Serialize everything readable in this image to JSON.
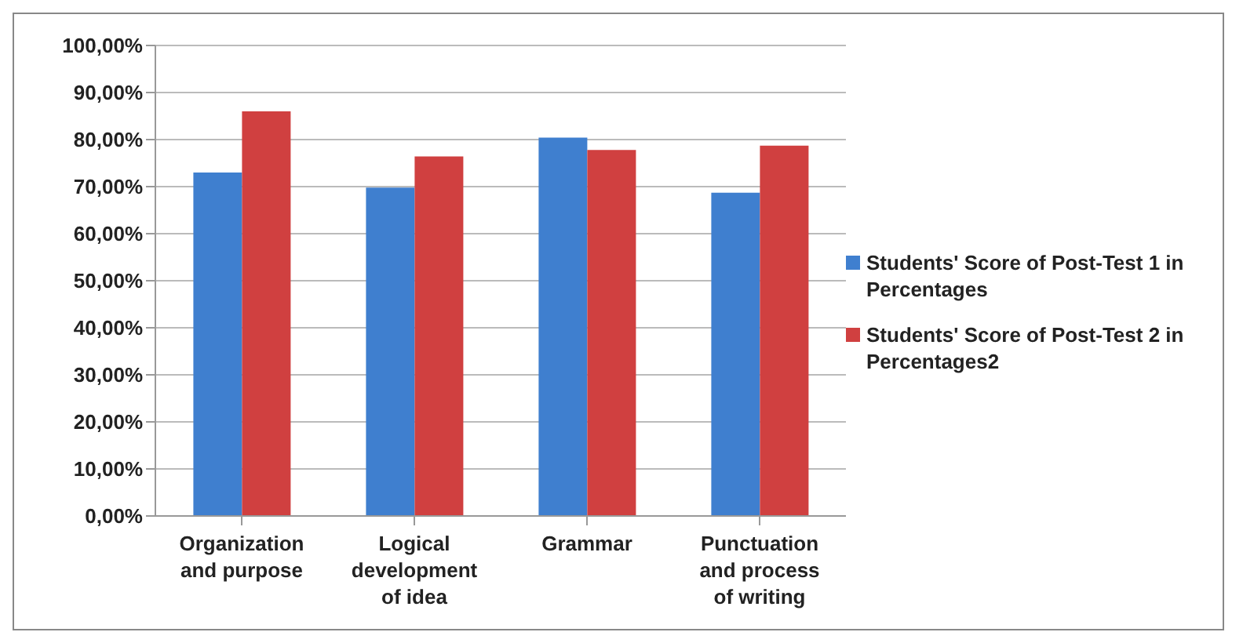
{
  "chart_data": {
    "type": "bar",
    "categories": [
      "Organization and purpose",
      "Logical development of idea",
      "Grammar",
      "Punctuation and process of writing"
    ],
    "series": [
      {
        "name": "Students' Score of Post-Test 1 in Percentages",
        "color": "#3f7fcf",
        "values": [
          73.0,
          69.8,
          80.4,
          68.7
        ]
      },
      {
        "name": "Students' Score of Post-Test 2 in Percentages2",
        "color": "#d04040",
        "values": [
          86.0,
          76.4,
          77.8,
          78.7
        ]
      }
    ],
    "ylim": [
      0,
      100
    ],
    "yticks": [
      {
        "value": 0,
        "label": "0,00%"
      },
      {
        "value": 10,
        "label": "10,00%"
      },
      {
        "value": 20,
        "label": "20,00%"
      },
      {
        "value": 30,
        "label": "30,00%"
      },
      {
        "value": 40,
        "label": "40,00%"
      },
      {
        "value": 50,
        "label": "50,00%"
      },
      {
        "value": 60,
        "label": "60,00%"
      },
      {
        "value": 70,
        "label": "70,00%"
      },
      {
        "value": 80,
        "label": "80,00%"
      },
      {
        "value": 90,
        "label": "90,00%"
      },
      {
        "value": 100,
        "label": "100,00%"
      }
    ],
    "grid": "y",
    "legend": "right"
  }
}
